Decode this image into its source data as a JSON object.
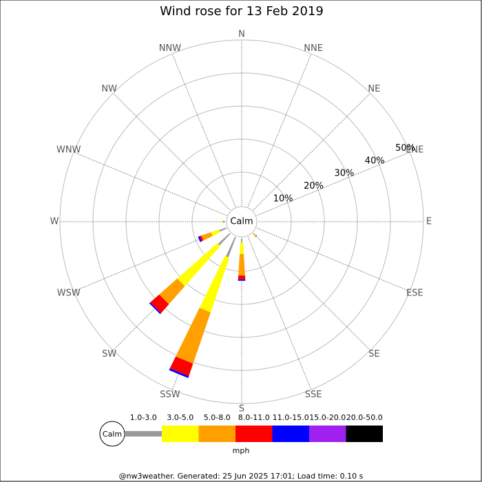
{
  "chart_data": {
    "type": "wind_rose",
    "title": "Wind rose for 13 Feb 2019",
    "directions": [
      "N",
      "NNE",
      "NE",
      "ENE",
      "E",
      "ESE",
      "SE",
      "SSE",
      "S",
      "SSW",
      "SW",
      "WSW",
      "W",
      "WNW",
      "NW",
      "NNW"
    ],
    "center_label": "Calm",
    "rlim": [
      0,
      50
    ],
    "rticks": [
      {
        "value": 10,
        "label": "10%"
      },
      {
        "value": 20,
        "label": "20%"
      },
      {
        "value": 30,
        "label": "30%"
      },
      {
        "value": 40,
        "label": "40%"
      },
      {
        "value": 50,
        "label": "50%"
      }
    ],
    "legend_unit": "mph",
    "series": [
      {
        "name": "1.0-3.0",
        "color": "#999999",
        "values": [
          0,
          0,
          0,
          0,
          0,
          0,
          0.5,
          0,
          1.3,
          6.5,
          4.8,
          2.3,
          0.4,
          0,
          0,
          0
        ]
      },
      {
        "name": "3.0-5.0",
        "color": "#ffff00",
        "values": [
          0,
          0,
          0,
          0,
          0,
          0,
          0.3,
          0,
          3.5,
          17.5,
          16.2,
          2.5,
          0,
          0,
          0,
          0
        ]
      },
      {
        "name": "5.0-8.0",
        "color": "#ffa000",
        "values": [
          0,
          0,
          0,
          0,
          0,
          0,
          0.3,
          0,
          6.5,
          16.4,
          7.3,
          3.1,
          0.3,
          0,
          0,
          0
        ]
      },
      {
        "name": "8.0-11.0",
        "color": "#ff0000",
        "values": [
          0,
          0,
          0,
          0,
          0,
          0,
          0.1,
          0,
          1.2,
          4,
          3.6,
          0.6,
          0,
          0,
          0,
          0
        ]
      },
      {
        "name": "11.0-15.0",
        "color": "#0000ff",
        "values": [
          0,
          0,
          0,
          0,
          0,
          0,
          0,
          0,
          0.4,
          0.6,
          0.4,
          0.5,
          0,
          0,
          0,
          0
        ]
      },
      {
        "name": "15.0-20.0",
        "color": "#a020f0",
        "values": [
          0,
          0,
          0,
          0,
          0,
          0,
          0,
          0,
          0,
          0,
          0,
          0,
          0,
          0,
          0,
          0
        ]
      },
      {
        "name": "20.0-50.0",
        "color": "#000000",
        "values": [
          0,
          0,
          0,
          0,
          0,
          0,
          0,
          0,
          0,
          0,
          0,
          0,
          0,
          0,
          0,
          0
        ]
      }
    ]
  },
  "footer": "@nw3weather. Generated: 25 Jun 2025 17:01; Load time: 0.10 s"
}
